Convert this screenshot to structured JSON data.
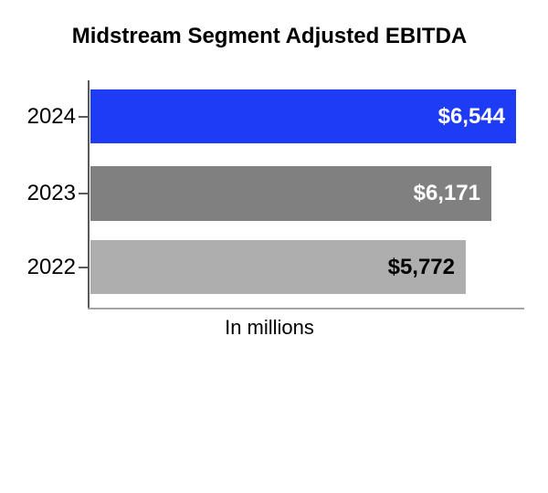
{
  "chart_data": {
    "type": "bar",
    "orientation": "horizontal",
    "title": "Midstream Segment Adjusted EBITDA",
    "xlabel": "In millions",
    "categories": [
      "2024",
      "2023",
      "2022"
    ],
    "values": [
      6544,
      6171,
      5772
    ],
    "bars": [
      {
        "year": "2024",
        "value": 6544,
        "label": "$6,544",
        "bar_color": "#1e3cf5",
        "label_color": "#ffffff"
      },
      {
        "year": "2023",
        "value": 6171,
        "label": "$6,171",
        "bar_color": "#808080",
        "label_color": "#ffffff"
      },
      {
        "year": "2022",
        "value": 5772,
        "label": "$5,772",
        "bar_color": "#aeaeae",
        "label_color": "#000000"
      }
    ],
    "grid": false,
    "legend": false,
    "colors": {
      "y_axis_line": "#595959",
      "x_axis_line": "#a3a3a3",
      "title_color": "#000000"
    }
  }
}
